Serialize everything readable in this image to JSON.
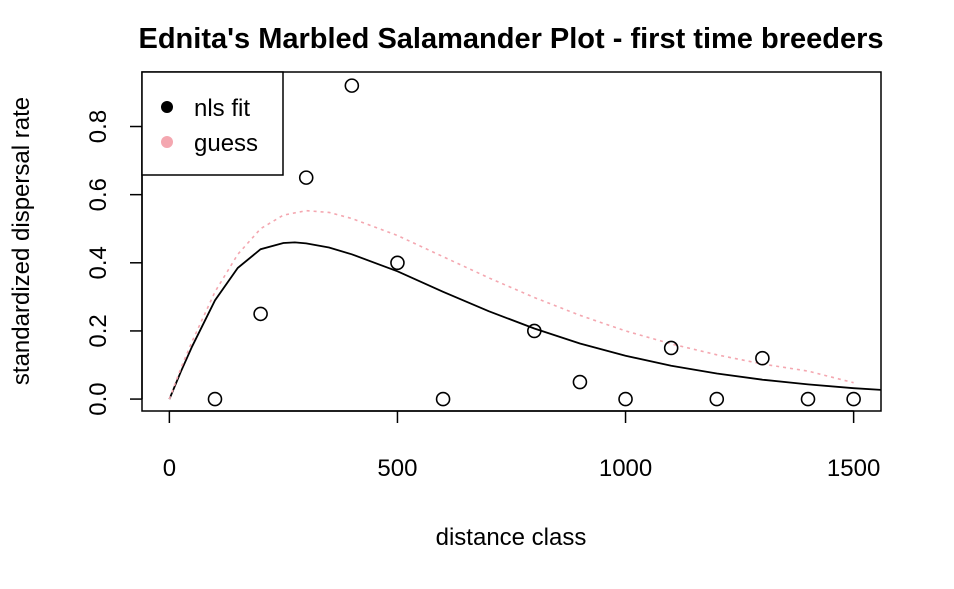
{
  "chart_data": {
    "type": "scatter",
    "title": "Ednita's Marbled Salamander Plot - first time breeders",
    "xlabel": "distance class",
    "ylabel": "standardized dispersal rate",
    "xlim": [
      -60,
      1560
    ],
    "ylim": [
      -0.035,
      0.96
    ],
    "x_ticks": [
      0,
      500,
      1000,
      1500
    ],
    "x_tick_labels": [
      "0",
      "500",
      "1000",
      "1500"
    ],
    "y_ticks": [
      0.0,
      0.2,
      0.4,
      0.6,
      0.8
    ],
    "y_tick_labels": [
      "0.0",
      "0.2",
      "0.4",
      "0.6",
      "0.8"
    ],
    "points": {
      "x": [
        100,
        200,
        300,
        400,
        500,
        600,
        800,
        900,
        1000,
        1100,
        1200,
        1300,
        1400,
        1500
      ],
      "y": [
        0.0,
        0.25,
        0.65,
        0.92,
        0.4,
        0.0,
        0.2,
        0.05,
        0.0,
        0.15,
        0.0,
        0.12,
        0.0,
        0.0
      ]
    },
    "series": [
      {
        "name": "nls fit",
        "color": "#000000",
        "line": "solid",
        "x": [
          0,
          25,
          50,
          100,
          150,
          200,
          250,
          275,
          300,
          350,
          400,
          500,
          600,
          700,
          800,
          900,
          1000,
          1100,
          1200,
          1300,
          1400,
          1500,
          1560
        ],
        "y": [
          0.0,
          0.08,
          0.155,
          0.29,
          0.385,
          0.44,
          0.458,
          0.46,
          0.457,
          0.445,
          0.425,
          0.375,
          0.315,
          0.258,
          0.207,
          0.163,
          0.127,
          0.098,
          0.075,
          0.057,
          0.043,
          0.032,
          0.027
        ]
      },
      {
        "name": "guess",
        "color": "#f4a7b0",
        "line": "dotted",
        "x": [
          0,
          25,
          50,
          100,
          150,
          200,
          250,
          300,
          350,
          400,
          500,
          600,
          700,
          800,
          900,
          1000,
          1100,
          1200,
          1300,
          1400,
          1500
        ],
        "y": [
          0.0,
          0.09,
          0.17,
          0.315,
          0.425,
          0.5,
          0.54,
          0.553,
          0.548,
          0.53,
          0.48,
          0.418,
          0.356,
          0.298,
          0.246,
          0.2,
          0.162,
          0.13,
          0.103,
          0.082,
          0.048
        ]
      }
    ],
    "legend": {
      "placement": "top-left",
      "entries": [
        {
          "label": "nls fit",
          "color": "#000000"
        },
        {
          "label": "guess",
          "color": "#f4a7b0"
        }
      ]
    },
    "grid": false
  }
}
